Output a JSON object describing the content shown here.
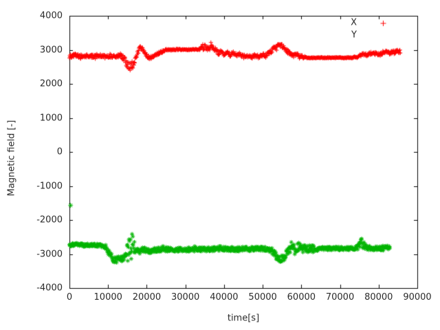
{
  "chart_data": {
    "type": "scatter",
    "title": "",
    "xlabel": "time[s]",
    "ylabel": "Magnetic field [-]",
    "xlim": [
      0,
      90000
    ],
    "ylim": [
      -4000,
      4000
    ],
    "grid": false,
    "xticks": [
      0,
      10000,
      20000,
      30000,
      40000,
      50000,
      60000,
      70000,
      80000,
      90000
    ],
    "xtick_labels": [
      "0",
      "10000",
      "20000",
      "30000",
      "40000",
      "50000",
      "60000",
      "70000",
      "80000",
      "90000"
    ],
    "yticks": [
      -4000,
      -3000,
      -2000,
      -1000,
      0,
      1000,
      2000,
      3000,
      4000
    ],
    "ytick_labels": [
      "-4000",
      "-3000",
      "-2000",
      "-1000",
      "0",
      "1000",
      "2000",
      "3000",
      "4000"
    ],
    "legend": {
      "position": "top-right",
      "entries": [
        {
          "label": "X",
          "color": "#ff0000",
          "marker": "plus",
          "marker_visible": true
        },
        {
          "label": "Y",
          "color": "#00b400",
          "marker": "asterisk",
          "marker_visible": false
        }
      ]
    },
    "sampling": {
      "step_s": 100
    },
    "series": [
      {
        "name": "X",
        "color": "#ff0000",
        "marker": "plus",
        "seed": 42,
        "t_start": 0,
        "t_end": 85600,
        "keypoints": [
          [
            0,
            2800
          ],
          [
            1500,
            2840
          ],
          [
            3000,
            2790
          ],
          [
            4500,
            2830
          ],
          [
            6000,
            2800
          ],
          [
            7500,
            2835
          ],
          [
            9000,
            2790
          ],
          [
            10500,
            2825
          ],
          [
            12000,
            2795
          ],
          [
            13200,
            2850
          ],
          [
            14200,
            2720
          ],
          [
            15000,
            2560
          ],
          [
            15800,
            2500
          ],
          [
            16400,
            2560
          ],
          [
            17000,
            2700
          ],
          [
            17600,
            2900
          ],
          [
            18200,
            3060
          ],
          [
            18800,
            3030
          ],
          [
            19400,
            2930
          ],
          [
            20200,
            2790
          ],
          [
            21000,
            2770
          ],
          [
            22000,
            2830
          ],
          [
            23000,
            2890
          ],
          [
            24000,
            2950
          ],
          [
            25000,
            3000
          ],
          [
            26500,
            3005
          ],
          [
            28000,
            3010
          ],
          [
            30000,
            3005
          ],
          [
            32000,
            3010
          ],
          [
            33500,
            3015
          ],
          [
            34300,
            3040
          ],
          [
            35200,
            3090
          ],
          [
            36000,
            3040
          ],
          [
            36800,
            3110
          ],
          [
            37600,
            3030
          ],
          [
            38400,
            2910
          ],
          [
            39200,
            2940
          ],
          [
            40000,
            2860
          ],
          [
            40800,
            2920
          ],
          [
            41600,
            2850
          ],
          [
            42400,
            2900
          ],
          [
            43200,
            2840
          ],
          [
            44000,
            2870
          ],
          [
            45000,
            2800
          ],
          [
            46000,
            2830
          ],
          [
            47000,
            2790
          ],
          [
            48000,
            2830
          ],
          [
            49000,
            2800
          ],
          [
            50000,
            2840
          ],
          [
            51000,
            2860
          ],
          [
            52000,
            2940
          ],
          [
            53000,
            3060
          ],
          [
            54000,
            3130
          ],
          [
            54800,
            3120
          ],
          [
            55600,
            3060
          ],
          [
            56400,
            2960
          ],
          [
            57200,
            2870
          ],
          [
            58000,
            2830
          ],
          [
            58800,
            2870
          ],
          [
            59600,
            2820
          ],
          [
            60400,
            2790
          ],
          [
            61500,
            2770
          ],
          [
            63000,
            2765
          ],
          [
            65000,
            2770
          ],
          [
            67000,
            2765
          ],
          [
            69000,
            2770
          ],
          [
            71000,
            2765
          ],
          [
            73000,
            2770
          ],
          [
            74500,
            2800
          ],
          [
            75500,
            2850
          ],
          [
            76300,
            2880
          ],
          [
            77100,
            2860
          ],
          [
            78000,
            2910
          ],
          [
            78800,
            2880
          ],
          [
            79600,
            2900
          ],
          [
            80400,
            2870
          ],
          [
            81200,
            2930
          ],
          [
            82000,
            2950
          ],
          [
            82800,
            2900
          ],
          [
            83600,
            2930
          ],
          [
            84400,
            2940
          ],
          [
            85300,
            2960
          ]
        ],
        "noise_keypoints": [
          [
            0,
            55
          ],
          [
            13000,
            55
          ],
          [
            14200,
            80
          ],
          [
            14800,
            120
          ],
          [
            16300,
            120
          ],
          [
            16900,
            70
          ],
          [
            19500,
            60
          ],
          [
            20500,
            45
          ],
          [
            24500,
            40
          ],
          [
            25500,
            16
          ],
          [
            33500,
            16
          ],
          [
            34200,
            55
          ],
          [
            35000,
            75
          ],
          [
            38500,
            75
          ],
          [
            39500,
            55
          ],
          [
            51500,
            55
          ],
          [
            52500,
            65
          ],
          [
            56500,
            65
          ],
          [
            57500,
            50
          ],
          [
            60500,
            45
          ],
          [
            61500,
            14
          ],
          [
            73500,
            14
          ],
          [
            74500,
            40
          ],
          [
            77000,
            50
          ],
          [
            85600,
            55
          ]
        ]
      },
      {
        "name": "Y",
        "color": "#00b400",
        "marker": "asterisk",
        "seed": 1337,
        "t_start": 0,
        "t_end": 82900,
        "keypoints": [
          [
            0,
            -2730
          ],
          [
            2000,
            -2720
          ],
          [
            4000,
            -2745
          ],
          [
            6000,
            -2730
          ],
          [
            8000,
            -2745
          ],
          [
            9000,
            -2780
          ],
          [
            9800,
            -2900
          ],
          [
            10600,
            -3050
          ],
          [
            11400,
            -3150
          ],
          [
            12200,
            -3180
          ],
          [
            12900,
            -3080
          ],
          [
            13600,
            -3150
          ],
          [
            14300,
            -3120
          ],
          [
            14900,
            -2980
          ],
          [
            15300,
            -2870
          ],
          [
            15900,
            -2760
          ],
          [
            16400,
            -2700
          ],
          [
            16900,
            -2820
          ],
          [
            17400,
            -2900
          ],
          [
            18000,
            -2880
          ],
          [
            19000,
            -2870
          ],
          [
            20000,
            -2890
          ],
          [
            20800,
            -2950
          ],
          [
            21500,
            -2880
          ],
          [
            23000,
            -2870
          ],
          [
            25000,
            -2860
          ],
          [
            27000,
            -2870
          ],
          [
            29000,
            -2860
          ],
          [
            31000,
            -2865
          ],
          [
            33000,
            -2860
          ],
          [
            35000,
            -2855
          ],
          [
            37000,
            -2860
          ],
          [
            38000,
            -2830
          ],
          [
            39000,
            -2870
          ],
          [
            40000,
            -2850
          ],
          [
            41000,
            -2870
          ],
          [
            42000,
            -2855
          ],
          [
            43500,
            -2860
          ],
          [
            45000,
            -2850
          ],
          [
            46500,
            -2855
          ],
          [
            48000,
            -2845
          ],
          [
            49500,
            -2850
          ],
          [
            51000,
            -2845
          ],
          [
            52300,
            -2890
          ],
          [
            53200,
            -3020
          ],
          [
            54000,
            -3120
          ],
          [
            54800,
            -3150
          ],
          [
            55600,
            -3080
          ],
          [
            56300,
            -2960
          ],
          [
            57000,
            -2850
          ],
          [
            57800,
            -2790
          ],
          [
            58600,
            -2830
          ],
          [
            59400,
            -2760
          ],
          [
            60200,
            -2850
          ],
          [
            61000,
            -2800
          ],
          [
            61800,
            -2870
          ],
          [
            62600,
            -2820
          ],
          [
            63400,
            -2860
          ],
          [
            64500,
            -2840
          ],
          [
            66000,
            -2835
          ],
          [
            68000,
            -2840
          ],
          [
            70000,
            -2835
          ],
          [
            72000,
            -2840
          ],
          [
            74000,
            -2830
          ],
          [
            75000,
            -2760
          ],
          [
            75600,
            -2700
          ],
          [
            76200,
            -2780
          ],
          [
            77000,
            -2830
          ],
          [
            78000,
            -2820
          ],
          [
            79000,
            -2840
          ],
          [
            80000,
            -2820
          ],
          [
            81000,
            -2840
          ],
          [
            82000,
            -2820
          ],
          [
            82900,
            -2810
          ]
        ],
        "noise_keypoints": [
          [
            0,
            45
          ],
          [
            9000,
            45
          ],
          [
            9800,
            80
          ],
          [
            11000,
            95
          ],
          [
            14500,
            95
          ],
          [
            15000,
            330
          ],
          [
            16600,
            330
          ],
          [
            17200,
            80
          ],
          [
            18500,
            65
          ],
          [
            52000,
            65
          ],
          [
            52800,
            100
          ],
          [
            56500,
            100
          ],
          [
            57200,
            120
          ],
          [
            63500,
            120
          ],
          [
            64500,
            50
          ],
          [
            74500,
            50
          ],
          [
            74900,
            150
          ],
          [
            76300,
            150
          ],
          [
            76900,
            65
          ],
          [
            82900,
            65
          ]
        ]
      }
    ],
    "outliers": [
      {
        "series": "Y",
        "t": 300,
        "value": -1570
      }
    ]
  }
}
